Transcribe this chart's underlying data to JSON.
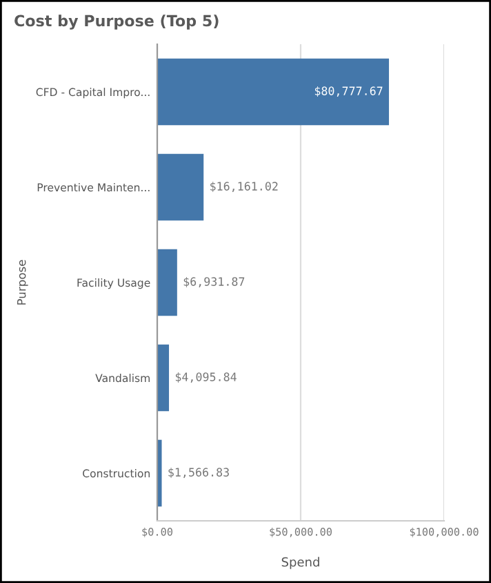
{
  "chart_data": {
    "type": "bar",
    "orientation": "horizontal",
    "title": "Cost by Purpose (Top 5)",
    "xlabel": "Spend",
    "ylabel": "Purpose",
    "categories": [
      "CFD - Capital Impro...",
      "Preventive Mainten...",
      "Facility Usage",
      "Vandalism",
      "Construction"
    ],
    "values": [
      80777.67,
      16161.02,
      6931.87,
      4095.84,
      1566.83
    ],
    "value_labels": [
      "$80,777.67",
      "$16,161.02",
      "$6,931.87",
      "$4,095.84",
      "$1,566.83"
    ],
    "color": "#4477aa",
    "xlim": [
      0,
      100000
    ],
    "xticks": [
      {
        "value": 0,
        "label": "$0.00"
      },
      {
        "value": 50000,
        "label": "$50,000.00"
      },
      {
        "value": 100000,
        "label": "$100,000.00"
      }
    ],
    "grid": "x"
  }
}
